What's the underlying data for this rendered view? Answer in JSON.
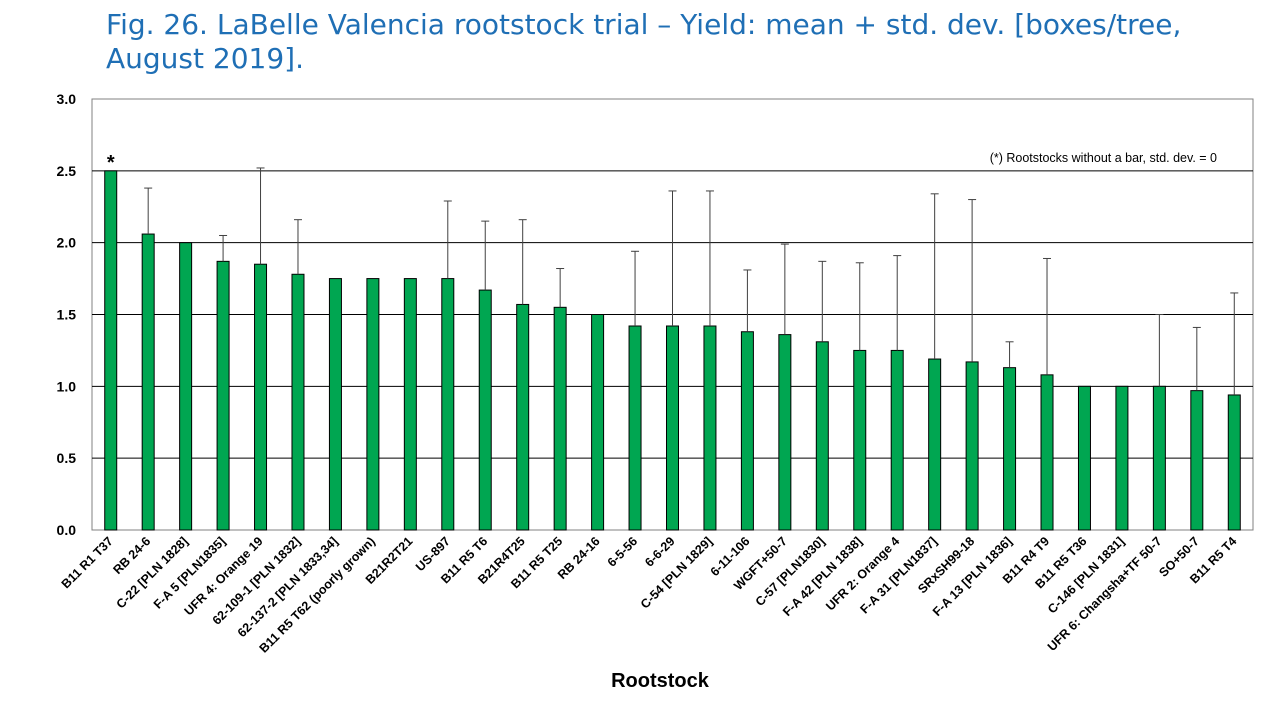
{
  "slide": {
    "title": "Fig. 26. LaBelle Valencia rootstock trial – Yield: mean + std. dev. [boxes/tree, August 2019]."
  },
  "chart_data": {
    "type": "bar",
    "xlabel": "Rootstock",
    "ylabel": "",
    "ylim": [
      0,
      3.0
    ],
    "yticks": [
      "0.0",
      "0.5",
      "1.0",
      "1.5",
      "2.0",
      "2.5",
      "3.0"
    ],
    "grid": "horizontal",
    "bar_color": "#00a651",
    "note": "(*) Rootstocks without  a bar, std. dev. = 0",
    "marker_text": "*",
    "marker_category": "B11 R1 T37",
    "categories": [
      "B11 R1 T37",
      "RB 24-6",
      "C-22 [PLN 1828]",
      "F-A 5 [PLN1835]",
      "UFR 4: Orange 19",
      "62-109-1 [PLN 1832]",
      "62-137-2 [PLN 1833,34]",
      "B11 R5 T62 (poorly grown)",
      "B21R2T21",
      "US-897",
      "B11 R5 T6",
      "B21R4T25",
      "B11 R5 T25",
      "RB 24-16",
      "6-5-56",
      "6-6-29",
      "C-54 [PLN 1829]",
      "6-11-106",
      "WGFT+50-7",
      "C-57 [PLN1830]",
      "F-A 42 [PLN 1838]",
      "UFR 2: Orange 4",
      "F-A 31 [PLN1837]",
      "SRxSH99-18",
      "F-A 13 [PLN 1836]",
      "B11 R4 T9",
      "B11 R5 T36",
      "C-146 [PLN 1831]",
      "UFR 6: Changsha+TF 50-7",
      "SO+50-7",
      "B11 R5 T4"
    ],
    "series": [
      {
        "values": [
          2.5,
          2.06,
          2.0,
          1.87,
          1.85,
          1.78,
          1.75,
          1.75,
          1.75,
          1.75,
          1.67,
          1.57,
          1.55,
          1.5,
          1.42,
          1.42,
          1.42,
          1.38,
          1.36,
          1.31,
          1.25,
          1.25,
          1.19,
          1.17,
          1.13,
          1.08,
          1.0,
          1.0,
          1.0,
          0.97,
          0.94
        ],
        "std_dev": [
          0.0,
          0.32,
          0.0,
          0.18,
          0.67,
          0.38,
          0.0,
          0.0,
          0.0,
          0.54,
          0.48,
          0.59,
          0.27,
          0.0,
          0.52,
          0.94,
          0.94,
          0.43,
          0.63,
          0.56,
          0.61,
          0.66,
          1.15,
          1.13,
          0.18,
          0.81,
          0.0,
          0.0,
          0.5,
          0.44,
          0.71
        ]
      }
    ]
  }
}
